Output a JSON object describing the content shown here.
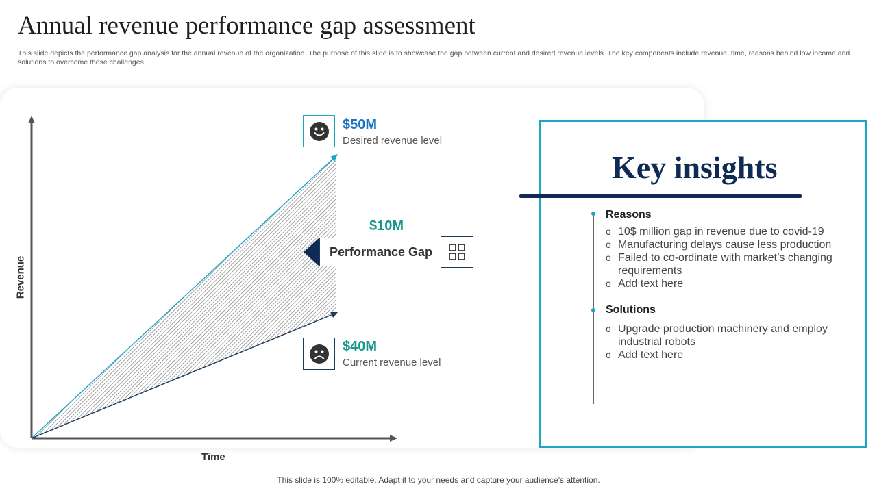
{
  "header": {
    "title": "Annual revenue performance gap assessment",
    "subtitle": "This slide depicts the performance gap analysis for the annual revenue of the organization. The purpose of this slide is to showcase the gap between current and desired revenue levels. The key components include revenue, time, reasons behind low income and solutions to overcome those challenges."
  },
  "diagram": {
    "ylabel": "Revenue",
    "xlabel": "Time",
    "desired": {
      "value": "$50M",
      "label": "Desired revenue level",
      "icon": "smile-face-icon"
    },
    "current": {
      "value": "$40M",
      "label": "Current revenue level",
      "icon": "sad-face-icon"
    },
    "gap": {
      "value": "$10M",
      "label": "Performance Gap",
      "icon": "grid-icon"
    }
  },
  "insights": {
    "title": "Key insights",
    "reasons": {
      "heading": "Reasons",
      "items": [
        "10$ million gap in revenue due to covid-19",
        "Manufacturing delays cause less production",
        "Failed to co-ordinate with market’s changing requirements",
        "Add text here"
      ]
    },
    "solutions": {
      "heading": "Solutions",
      "items": [
        "Upgrade production machinery and employ industrial robots",
        "Add text here"
      ]
    }
  },
  "footer": {
    "text": "This slide is 100% editable. Adapt it to your needs and capture your audience’s attention."
  },
  "colors": {
    "navy": "#0f2b54",
    "dark_blue": "#1b3a5c",
    "accent_blue": "#1a73c4",
    "teal": "#17968c",
    "cyan": "#1aa6c4"
  }
}
